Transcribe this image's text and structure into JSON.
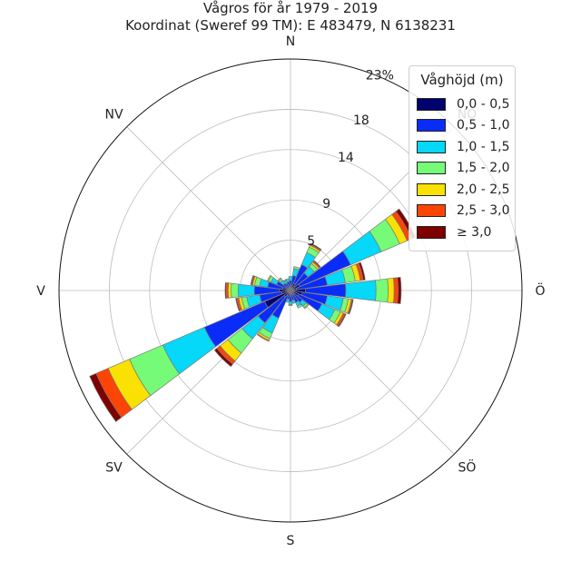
{
  "title": {
    "line1": "Vågros för år 1979 - 2019",
    "line2": "Koordinat (Sweref 99 TM): E 483479, N 6138231"
  },
  "legend": {
    "title": "Våghöjd (m)",
    "items": [
      {
        "label": "0,0 - 0,5",
        "color": "#00006f"
      },
      {
        "label": "0,5 - 1,0",
        "color": "#0a2cf8"
      },
      {
        "label": "1,0 - 1,5",
        "color": "#05d8f8"
      },
      {
        "label": "1,5 - 2,0",
        "color": "#75fb78"
      },
      {
        "label": "2,0 - 2,5",
        "color": "#f8e103"
      },
      {
        "label": "2,5 - 3,0",
        "color": "#fc4405"
      },
      {
        "label": "≥ 3,0",
        "color": "#7e0000"
      }
    ]
  },
  "chart_data": {
    "type": "polar-stacked-bar",
    "direction_labels": [
      "N",
      "NO",
      "Ö",
      "SÖ",
      "S",
      "SV",
      "V",
      "NV"
    ],
    "radial_ticks": [
      5,
      9,
      14,
      18,
      23
    ],
    "radial_tick_labels": [
      "5",
      "9",
      "14",
      "18",
      "23%"
    ],
    "rmax": 23,
    "sector_count": 24,
    "sector_width_deg": 15,
    "bin_colors": [
      "#00006f",
      "#0a2cf8",
      "#05d8f8",
      "#75fb78",
      "#f8e103",
      "#fc4405",
      "#7e0000"
    ],
    "directions_deg": [
      0,
      15,
      30,
      45,
      60,
      75,
      90,
      105,
      120,
      135,
      150,
      165,
      180,
      195,
      210,
      225,
      240,
      255,
      270,
      285,
      300,
      315,
      330,
      345
    ],
    "frequencies": [
      [
        0.3,
        0.7,
        0.4,
        0.0,
        0.0,
        0.0,
        0.0
      ],
      [
        0.5,
        1.0,
        0.7,
        0.2,
        0.0,
        0.0,
        0.0
      ],
      [
        0.8,
        2.0,
        1.3,
        0.6,
        0.2,
        0.1,
        0.1
      ],
      [
        0.6,
        1.6,
        0.8,
        0.4,
        0.2,
        0.1,
        0.1
      ],
      [
        1.0,
        5.5,
        3.3,
        2.0,
        0.8,
        0.5,
        0.4
      ],
      [
        0.6,
        3.1,
        1.8,
        1.0,
        0.5,
        0.3,
        0.2
      ],
      [
        1.5,
        4.0,
        3.0,
        1.2,
        0.6,
        0.4,
        0.3
      ],
      [
        1.2,
        2.5,
        1.6,
        0.5,
        0.3,
        0.1,
        0.1
      ],
      [
        0.9,
        2.5,
        1.4,
        0.6,
        0.3,
        0.2,
        0.1
      ],
      [
        0.5,
        1.0,
        0.5,
        0.2,
        0.1,
        0.0,
        0.0
      ],
      [
        0.5,
        0.8,
        0.4,
        0.2,
        0.0,
        0.0,
        0.0
      ],
      [
        0.4,
        0.6,
        0.3,
        0.0,
        0.0,
        0.0,
        0.0
      ],
      [
        0.4,
        0.7,
        0.3,
        0.1,
        0.0,
        0.0,
        0.0
      ],
      [
        0.3,
        0.6,
        0.3,
        0.0,
        0.0,
        0.0,
        0.0
      ],
      [
        0.6,
        2.4,
        1.6,
        0.6,
        0.2,
        0.1,
        0.0
      ],
      [
        0.8,
        3.3,
        2.0,
        1.8,
        1.0,
        0.4,
        0.3
      ],
      [
        2.8,
        6.5,
        4.5,
        3.6,
        2.3,
        1.3,
        0.7
      ],
      [
        0.9,
        2.2,
        1.3,
        0.5,
        0.3,
        0.2,
        0.1
      ],
      [
        1.1,
        2.5,
        1.6,
        0.7,
        0.3,
        0.2,
        0.1
      ],
      [
        0.8,
        1.5,
        0.8,
        0.5,
        0.2,
        0.1,
        0.1
      ],
      [
        0.5,
        1.0,
        0.6,
        0.3,
        0.1,
        0.0,
        0.0
      ],
      [
        0.3,
        0.6,
        0.4,
        0.2,
        0.1,
        0.0,
        0.0
      ],
      [
        0.3,
        0.5,
        0.3,
        0.1,
        0.0,
        0.0,
        0.0
      ],
      [
        0.3,
        0.6,
        0.3,
        0.0,
        0.0,
        0.0,
        0.0
      ]
    ],
    "grid": true,
    "legend_position": "top-right"
  }
}
